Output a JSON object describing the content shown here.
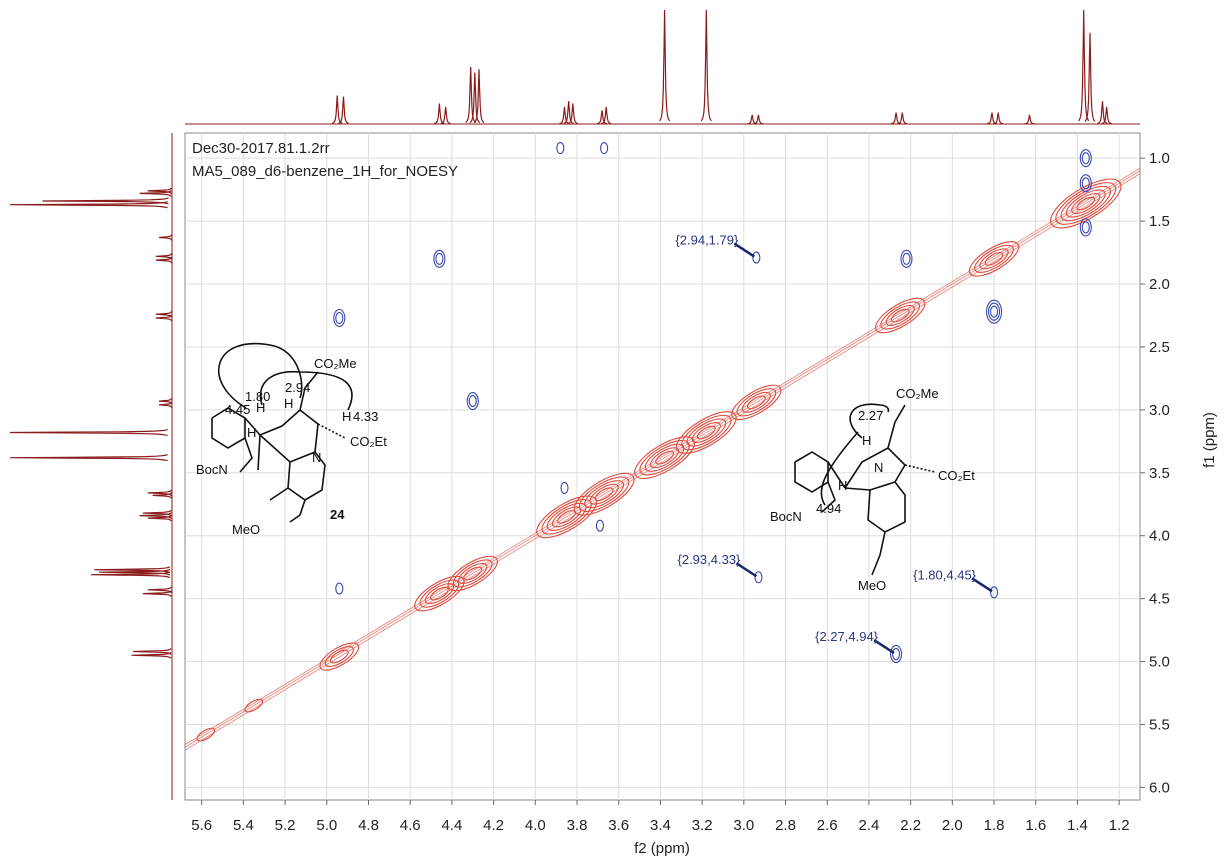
{
  "chart_data": {
    "type": "noesy",
    "title_lines": [
      "Dec30-2017.81.1.2rr",
      "MA5_089_d6-benzene_1H_for_NOESY"
    ],
    "x_label": "f2 (ppm)",
    "y_label": "f1 (ppm)",
    "xlim": [
      5.68,
      1.1
    ],
    "ylim": [
      0.8,
      6.1
    ],
    "xticks": [
      5.6,
      5.4,
      5.2,
      {
        "value": 5,
        "label": "5.0"
      },
      4.8,
      4.6,
      4.4,
      4.2,
      {
        "value": 4,
        "label": "4.0"
      },
      3.8,
      3.6,
      3.4,
      3.2,
      {
        "value": 3,
        "label": "3.0"
      },
      2.8,
      2.6,
      2.4,
      2.2,
      {
        "value": 2,
        "label": "2.0"
      },
      1.8,
      1.6,
      1.4,
      1.2
    ],
    "yticks": [
      {
        "value": 1,
        "label": "1.0"
      },
      1.5,
      {
        "value": 2,
        "label": "2.0"
      },
      2.5,
      {
        "value": 3,
        "label": "3.0"
      },
      3.5,
      {
        "value": 4,
        "label": "4.0"
      },
      4.5,
      {
        "value": 5,
        "label": "5.0"
      },
      5.5,
      {
        "value": 6,
        "label": "6.0"
      }
    ],
    "grid": true,
    "projection": {
      "color": "#8b1a1a",
      "x": [
        4.95,
        4.92,
        4.46,
        4.43,
        4.31,
        4.29,
        4.27,
        3.86,
        3.84,
        3.82,
        3.68,
        3.66,
        3.38,
        3.18,
        2.96,
        2.93,
        2.27,
        2.24,
        1.81,
        1.78,
        1.63,
        1.37,
        1.34,
        1.28,
        1.26
      ],
      "height": [
        25,
        24,
        18,
        15,
        50,
        45,
        48,
        15,
        20,
        18,
        12,
        15,
        100,
        100,
        8,
        8,
        10,
        10,
        10,
        10,
        8,
        100,
        80,
        20,
        15
      ]
    },
    "diagonal_peaks": {
      "color": "#e04a3c",
      "x": [
        5.58,
        5.35,
        4.94,
        4.46,
        4.3,
        3.85,
        3.67,
        3.38,
        3.18,
        2.94,
        2.25,
        1.8,
        1.36
      ],
      "y": [
        5.58,
        5.35,
        4.96,
        4.46,
        4.3,
        3.85,
        3.67,
        3.38,
        3.18,
        2.94,
        2.25,
        1.8,
        1.36
      ],
      "size": [
        1,
        1,
        3,
        4,
        4,
        5,
        5,
        5,
        5,
        4,
        4,
        4,
        6
      ]
    },
    "cross_peaks": {
      "color": "#3848b0",
      "x": [
        4.46,
        4.94,
        4.3,
        3.86,
        3.69,
        4.94,
        2.94,
        2.93,
        2.27,
        1.8,
        2.22,
        1.8,
        1.36,
        1.36,
        1.36,
        3.67,
        3.88
      ],
      "y": [
        1.8,
        2.27,
        2.93,
        3.62,
        3.92,
        4.42,
        1.79,
        4.33,
        4.94,
        4.45,
        1.8,
        2.22,
        1.0,
        1.2,
        1.55,
        0.92,
        0.92
      ],
      "size": [
        2,
        2,
        2,
        1,
        1,
        1,
        1,
        1,
        2,
        1,
        2,
        3,
        2,
        2,
        2,
        1,
        1
      ]
    },
    "annotations": [
      {
        "text": "{2.94,1.79}",
        "x": 2.94,
        "y": 1.79
      },
      {
        "text": "{2.93,4.33}",
        "x": 2.93,
        "y": 4.33
      },
      {
        "text": "{1.80,4.45}",
        "x": 1.8,
        "y": 4.45
      },
      {
        "text": "{2.27,4.94}",
        "x": 2.27,
        "y": 4.94
      }
    ]
  },
  "structure_24": {
    "labels": [
      "CO₂Me",
      "1.80",
      "2.94",
      "4.45",
      "H",
      "H",
      "H",
      "4.33",
      "H",
      "CO₂Et",
      "N",
      "BocN",
      "MeO",
      "24"
    ]
  },
  "structure_right": {
    "labels": [
      "CO₂Me",
      "2.27",
      "H",
      "CO₂Et",
      "N",
      "H",
      "BocN",
      "4.94",
      "MeO"
    ]
  }
}
